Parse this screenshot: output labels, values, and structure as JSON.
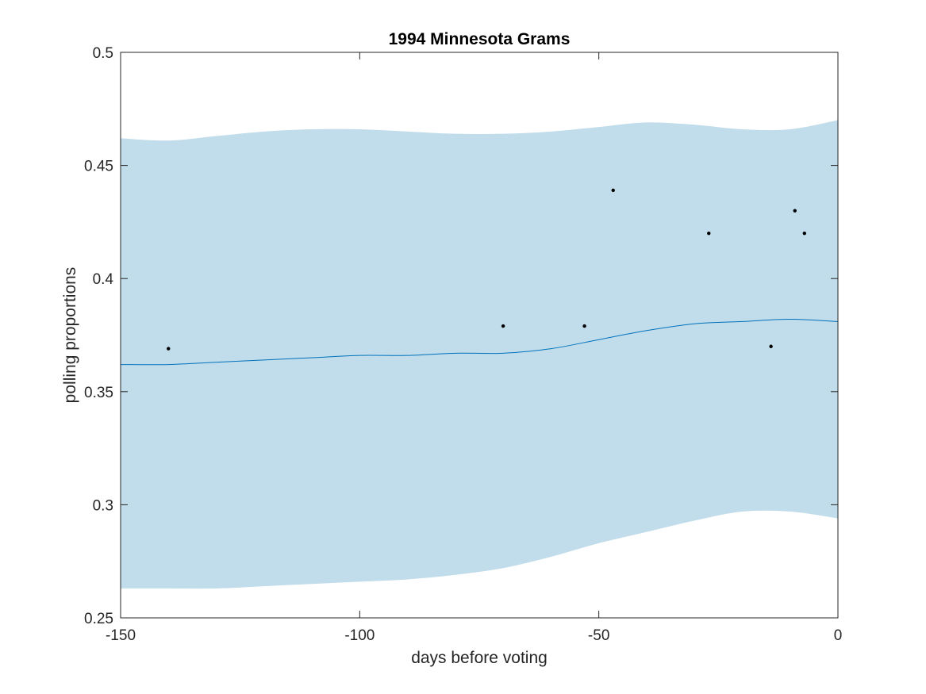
{
  "chart_data": {
    "type": "line",
    "title": "1994 Minnesota Grams",
    "xlabel": "days before voting",
    "ylabel": "polling proportions",
    "xlim": [
      -150,
      0
    ],
    "ylim": [
      0.25,
      0.5
    ],
    "x_ticks": [
      -150,
      -100,
      -50,
      0
    ],
    "x_tick_labels": [
      "-150",
      "-100",
      "-50",
      "0"
    ],
    "y_ticks": [
      0.25,
      0.3,
      0.35,
      0.4,
      0.45,
      0.5
    ],
    "y_tick_labels": [
      "0.25",
      "0.3",
      "0.35",
      "0.4",
      "0.45",
      "0.5"
    ],
    "grid": false,
    "band": {
      "x": [
        -150,
        -140,
        -130,
        -120,
        -110,
        -100,
        -90,
        -80,
        -70,
        -60,
        -50,
        -40,
        -30,
        -20,
        -10,
        0
      ],
      "upper": [
        0.462,
        0.461,
        0.463,
        0.465,
        0.466,
        0.466,
        0.465,
        0.464,
        0.464,
        0.465,
        0.467,
        0.469,
        0.468,
        0.466,
        0.466,
        0.47
      ],
      "lower": [
        0.263,
        0.263,
        0.263,
        0.264,
        0.265,
        0.266,
        0.267,
        0.269,
        0.272,
        0.277,
        0.283,
        0.288,
        0.293,
        0.297,
        0.297,
        0.294
      ]
    },
    "mean_line": {
      "x": [
        -150,
        -140,
        -130,
        -120,
        -110,
        -100,
        -90,
        -80,
        -70,
        -60,
        -50,
        -40,
        -30,
        -20,
        -10,
        0
      ],
      "y": [
        0.362,
        0.362,
        0.363,
        0.364,
        0.365,
        0.366,
        0.366,
        0.367,
        0.367,
        0.369,
        0.373,
        0.377,
        0.38,
        0.381,
        0.382,
        0.381
      ]
    },
    "points": {
      "x": [
        -140,
        -70,
        -53,
        -47,
        -27,
        -14,
        -9,
        -7
      ],
      "y": [
        0.369,
        0.379,
        0.379,
        0.439,
        0.42,
        0.37,
        0.43,
        0.42
      ]
    },
    "colors": {
      "band": "#c1dcea",
      "line": "#0072bd",
      "points": "#000000",
      "axes": "#262626"
    }
  }
}
